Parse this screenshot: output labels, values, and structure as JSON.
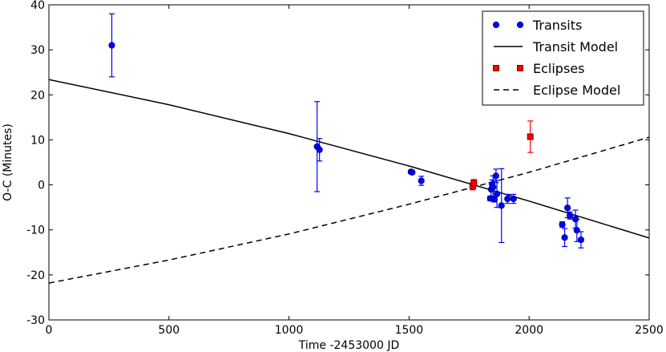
{
  "chart_data": {
    "type": "scatter",
    "xlabel": "Time -2453000 JD",
    "ylabel": "O-C (Minutes)",
    "xlim": [
      0,
      2500
    ],
    "ylim": [
      -30,
      40
    ],
    "xticks": [
      0,
      500,
      1000,
      1500,
      2000,
      2500
    ],
    "yticks": [
      -30,
      -20,
      -10,
      0,
      10,
      20,
      30,
      40
    ],
    "grid": false,
    "legend_position": "top-right",
    "colors": {
      "transit": "#0000ff",
      "eclipse": "#ff0000",
      "eclipse_edge": "#7a0000",
      "model": "#000000"
    },
    "series": [
      {
        "name": "Transits",
        "type": "scatter-errorbar",
        "points": [
          {
            "x": 262,
            "y": 31.0,
            "err": 7.0
          },
          {
            "x": 1117,
            "y": 8.5,
            "err": 10.0
          },
          {
            "x": 1127,
            "y": 7.8,
            "err": 2.5
          },
          {
            "x": 1508,
            "y": 2.9,
            "err": 0.3
          },
          {
            "x": 1513,
            "y": 2.8,
            "err": 0.3
          },
          {
            "x": 1551,
            "y": 0.9,
            "err": 1.0
          },
          {
            "x": 1838,
            "y": -3.0,
            "err": 0.5
          },
          {
            "x": 1842,
            "y": -1.0,
            "err": 1.5
          },
          {
            "x": 1846,
            "y": 0.1,
            "err": 1.0
          },
          {
            "x": 1850,
            "y": -0.5,
            "err": 2.5
          },
          {
            "x": 1855,
            "y": -3.2,
            "err": 0.6
          },
          {
            "x": 1862,
            "y": 2.0,
            "err": 1.5
          },
          {
            "x": 1866,
            "y": -2.0,
            "err": 3.0
          },
          {
            "x": 1885,
            "y": -4.6,
            "err": 8.2
          },
          {
            "x": 1910,
            "y": -3.1,
            "err": 1.0
          },
          {
            "x": 1935,
            "y": -3.1,
            "err": 1.0
          },
          {
            "x": 2138,
            "y": -8.8,
            "err": 0.6
          },
          {
            "x": 2148,
            "y": -11.7,
            "err": 2.0
          },
          {
            "x": 2160,
            "y": -5.1,
            "err": 2.2
          },
          {
            "x": 2170,
            "y": -6.8,
            "err": 0.8
          },
          {
            "x": 2193,
            "y": -7.6,
            "err": 2.0
          },
          {
            "x": 2199,
            "y": -10.1,
            "err": 2.5
          },
          {
            "x": 2216,
            "y": -12.2,
            "err": 1.8
          }
        ]
      },
      {
        "name": "Transit Model",
        "type": "line",
        "style": "solid",
        "x": [
          0,
          500,
          1000,
          1500,
          2000,
          2500
        ],
        "y": [
          23.4,
          17.8,
          11.4,
          4.2,
          -3.6,
          -11.8
        ]
      },
      {
        "name": "Eclipses",
        "type": "scatter-errorbar",
        "points": [
          {
            "x": 1765,
            "y": -0.3,
            "err": 0.8
          },
          {
            "x": 1770,
            "y": 0.4,
            "err": 0.8
          },
          {
            "x": 2005,
            "y": 10.7,
            "err": 3.5
          }
        ]
      },
      {
        "name": "Eclipse Model",
        "type": "line",
        "style": "dashed",
        "x": [
          0,
          500,
          1000,
          1500,
          2000,
          2500
        ],
        "y": [
          -21.8,
          -16.7,
          -10.9,
          -4.3,
          2.8,
          10.6
        ]
      }
    ]
  }
}
